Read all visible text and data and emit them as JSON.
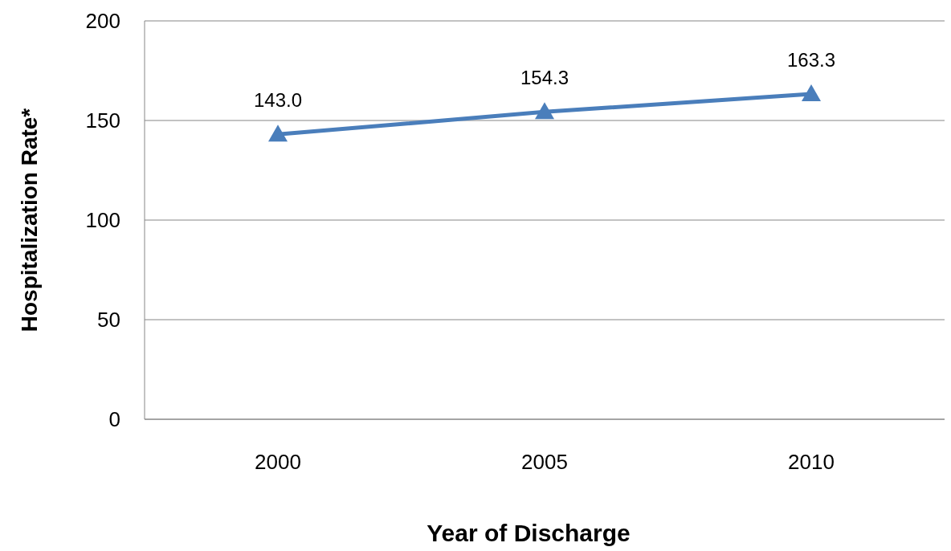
{
  "chart_data": {
    "type": "line",
    "xlabel": "Year of Discharge",
    "ylabel": "Hospitalization Rate*",
    "categories": [
      "2000",
      "2005",
      "2010"
    ],
    "series": [
      {
        "color": "#4a7ebb",
        "values": [
          143.0,
          154.3,
          163.3
        ],
        "value_labels": [
          "143.0",
          "154.3",
          "163.3"
        ]
      }
    ],
    "ylim": [
      0,
      200
    ],
    "yticks": [
      0,
      50,
      100,
      150,
      200
    ],
    "grid": "y",
    "marker": "triangle",
    "line_style": "solid"
  }
}
